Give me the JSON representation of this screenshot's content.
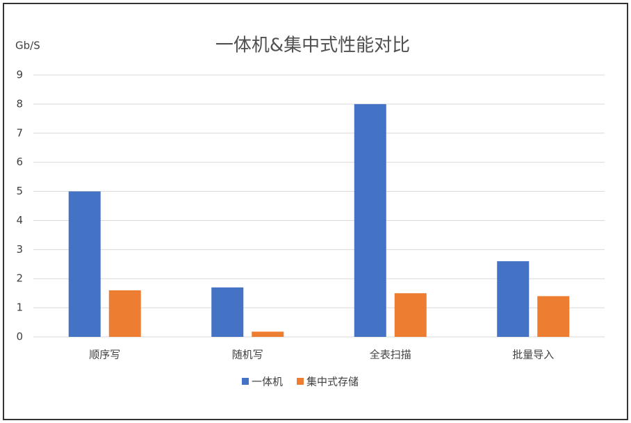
{
  "chart_data": {
    "type": "bar",
    "title": "一体机&集中式性能对比",
    "y_label": "Gb/S",
    "categories": [
      "顺序写",
      "随机写",
      "全表扫描",
      "批量导入"
    ],
    "series": [
      {
        "name": "一体机",
        "color": "#4472c4",
        "values": [
          5,
          1.7,
          8,
          2.6
        ]
      },
      {
        "name": "集中式存储",
        "color": "#ed7d31",
        "values": [
          1.6,
          0.18,
          1.5,
          1.4
        ]
      }
    ],
    "ylim": [
      0,
      9
    ],
    "yticks": [
      0,
      1,
      2,
      3,
      4,
      5,
      6,
      7,
      8,
      9
    ],
    "grid": true,
    "legend": "bottom"
  }
}
